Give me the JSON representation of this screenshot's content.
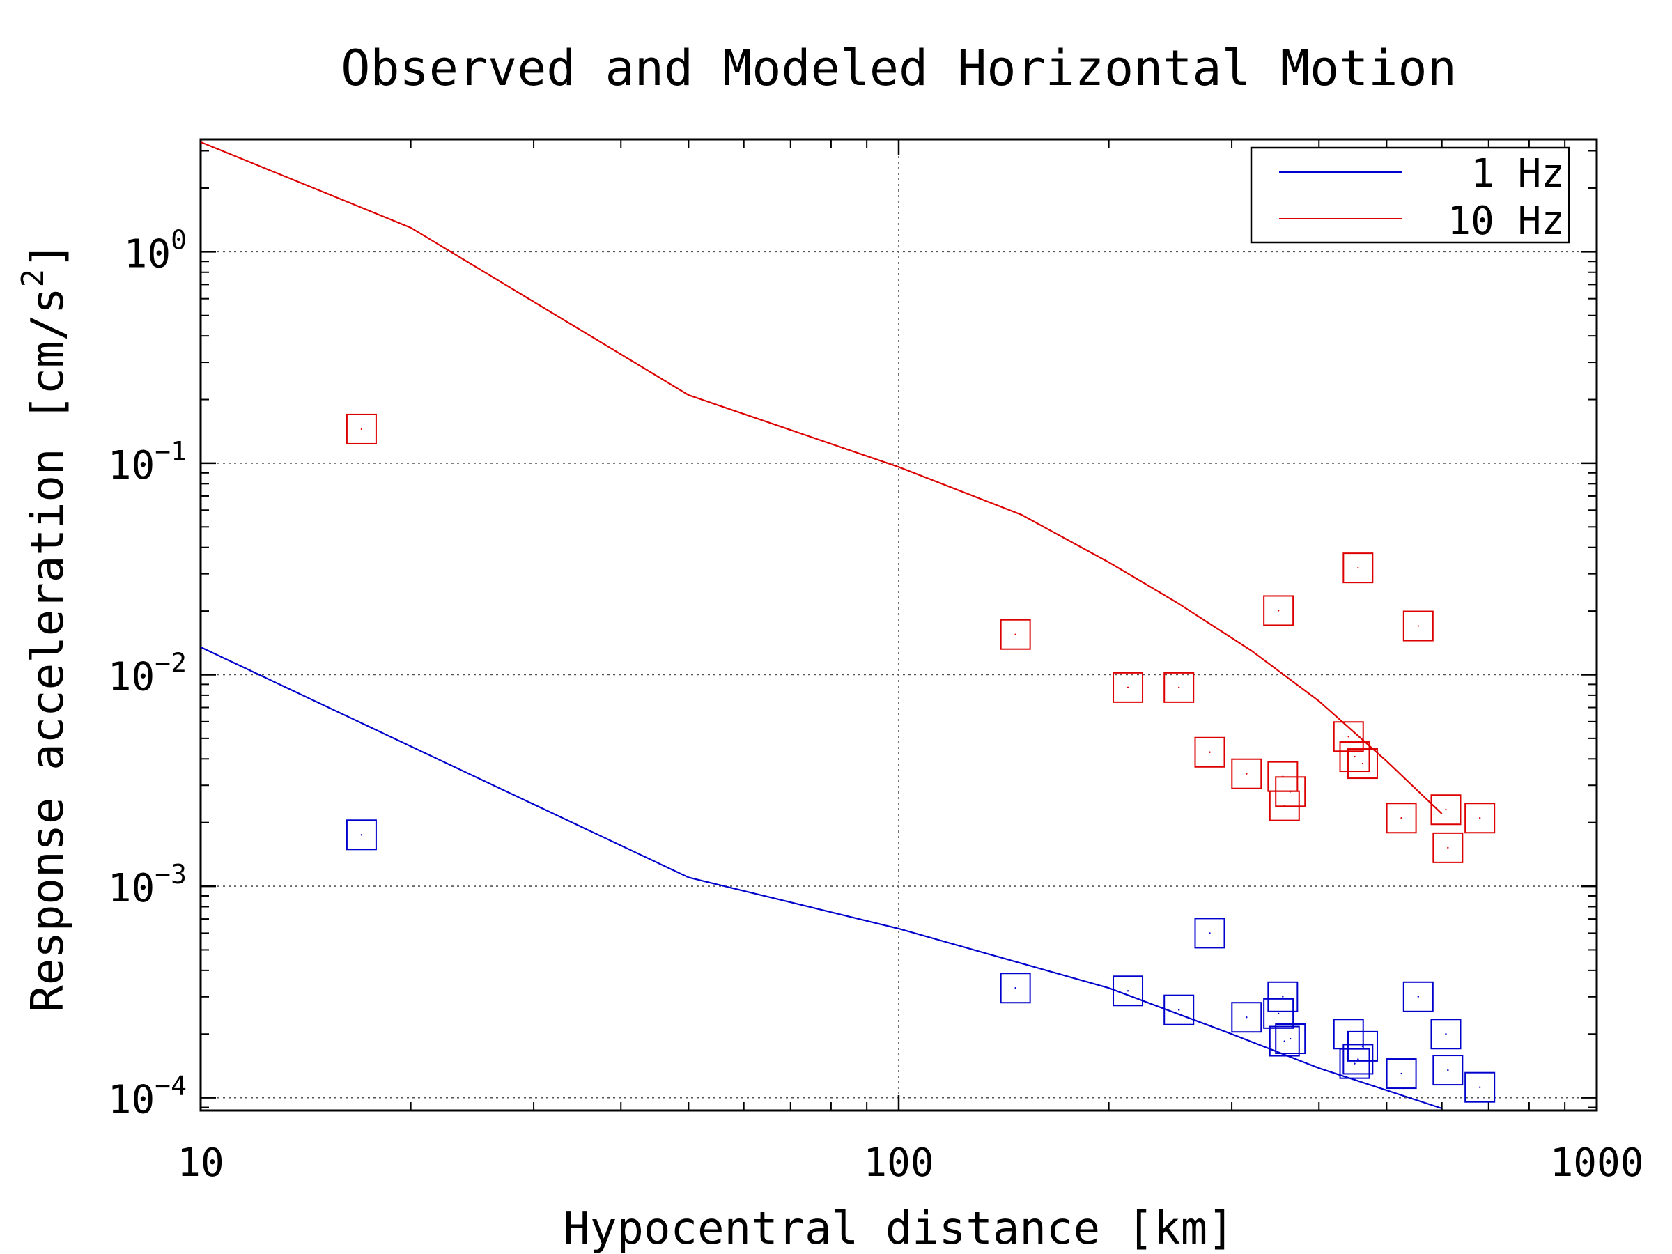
{
  "chart_data": {
    "type": "scatter",
    "title": "Observed and Modeled Horizontal Motion",
    "xlabel": "Hypocentral distance [km]",
    "ylabel": "Response acceleration [cm/s",
    "ylabel_sup": "2",
    "ylabel_close": "]",
    "x_scale": "log",
    "y_scale": "log",
    "xlim": [
      10,
      1000
    ],
    "ylim": [
      8.7e-05,
      3.4
    ],
    "x_ticks": [
      {
        "value": 10,
        "label": "10"
      },
      {
        "value": 100,
        "label": "100"
      },
      {
        "value": 1000,
        "label": "1000"
      }
    ],
    "y_ticks": [
      {
        "value": 1,
        "base": "10",
        "exp": "0"
      },
      {
        "value": 0.1,
        "base": "10",
        "exp": "−1"
      },
      {
        "value": 0.01,
        "base": "10",
        "exp": "−2"
      },
      {
        "value": 0.001,
        "base": "10",
        "exp": "−3"
      },
      {
        "value": 0.0001,
        "base": "10",
        "exp": "−4"
      }
    ],
    "grid": "dotted at major ticks",
    "legend_position": "top-right",
    "colors": {
      "1 Hz": "#0000cc",
      "10 Hz": "#dd0000"
    },
    "series": [
      {
        "name": "1 Hz",
        "kind": "line",
        "color": "#0000cc",
        "points": [
          [
            10,
            0.0135
          ],
          [
            50,
            0.0011
          ],
          [
            100,
            0.00063
          ],
          [
            200,
            0.00033
          ],
          [
            300,
            0.0002
          ],
          [
            400,
            0.000138
          ],
          [
            600,
            8.9e-05
          ]
        ]
      },
      {
        "name": "10 Hz",
        "kind": "line",
        "color": "#dd0000",
        "points": [
          [
            10,
            3.3
          ],
          [
            20,
            1.3
          ],
          [
            50,
            0.21
          ],
          [
            100,
            0.096
          ],
          [
            150,
            0.057
          ],
          [
            200,
            0.034
          ],
          [
            250,
            0.022
          ],
          [
            320,
            0.013
          ],
          [
            400,
            0.0075
          ],
          [
            500,
            0.0039
          ],
          [
            600,
            0.0022
          ]
        ]
      },
      {
        "name": "10 Hz observed",
        "kind": "markers",
        "color": "#dd0000",
        "points": [
          [
            17,
            0.145
          ],
          [
            147,
            0.0155
          ],
          [
            213,
            0.0087
          ],
          [
            252,
            0.0087
          ],
          [
            279,
            0.0043
          ],
          [
            315,
            0.0034
          ],
          [
            350,
            0.0201
          ],
          [
            355,
            0.0033
          ],
          [
            357,
            0.0024
          ],
          [
            364,
            0.0028
          ],
          [
            441,
            0.0051
          ],
          [
            450,
            0.0041
          ],
          [
            455,
            0.032
          ],
          [
            462,
            0.0038
          ],
          [
            525,
            0.0021
          ],
          [
            555,
            0.017
          ],
          [
            608,
            0.0023
          ],
          [
            612,
            0.00152
          ],
          [
            680,
            0.0021
          ]
        ]
      },
      {
        "name": "1 Hz observed",
        "kind": "markers",
        "color": "#0000cc",
        "points": [
          [
            17,
            0.00175
          ],
          [
            147,
            0.00033
          ],
          [
            213,
            0.00032
          ],
          [
            252,
            0.00026
          ],
          [
            279,
            0.0006
          ],
          [
            315,
            0.00024
          ],
          [
            350,
            0.00025
          ],
          [
            355,
            0.0003
          ],
          [
            357,
            0.000185
          ],
          [
            364,
            0.00019
          ],
          [
            441,
            0.0002
          ],
          [
            450,
            0.000145
          ],
          [
            455,
            0.000152
          ],
          [
            462,
            0.000175
          ],
          [
            525,
            0.00013
          ],
          [
            555,
            0.0003
          ],
          [
            608,
            0.0002
          ],
          [
            612,
            0.000135
          ],
          [
            680,
            0.000112
          ]
        ]
      }
    ]
  }
}
